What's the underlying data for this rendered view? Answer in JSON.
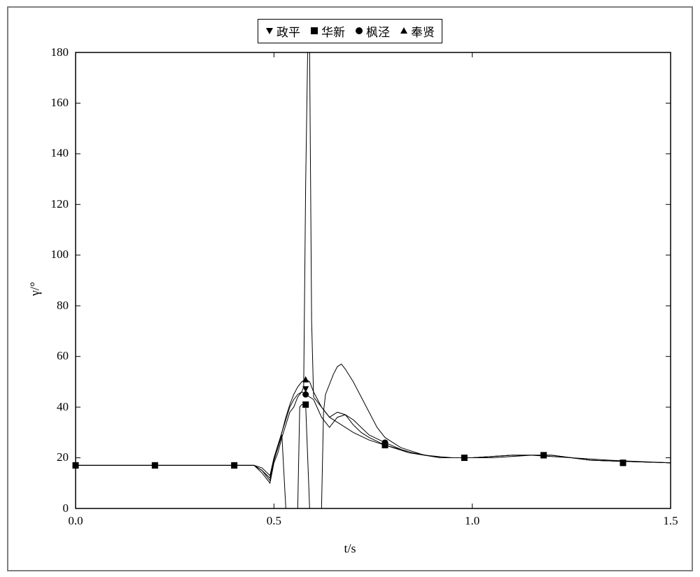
{
  "chart": {
    "type": "line",
    "xlabel": "t/s",
    "ylabel": "γ/°",
    "xlim": [
      0,
      1.5
    ],
    "ylim": [
      0,
      180
    ],
    "xtick_step": 0.5,
    "ytick_step": 20,
    "xticks": [
      0.0,
      0.5,
      1.0,
      1.5
    ],
    "yticks": [
      0,
      20,
      40,
      60,
      80,
      100,
      120,
      140,
      160,
      180
    ],
    "background_color": "#ffffff",
    "border_color": "#000000",
    "frame_color": "#808080",
    "line_color": "#000000",
    "line_width": 1,
    "label_fontsize": 18,
    "tick_fontsize": 17,
    "legend_fontsize": 17,
    "legend_position": "top-center",
    "series": [
      {
        "name": "政平",
        "marker": "triangle-down",
        "marker_color": "#000000",
        "marker_size": 9,
        "color": "#000000",
        "marker_x": [
          0.0,
          0.2,
          0.4,
          0.58,
          0.78,
          0.98,
          1.18,
          1.38
        ],
        "marker_y": [
          17,
          17,
          17,
          47,
          25,
          20,
          21,
          18
        ],
        "data": [
          [
            0.0,
            17
          ],
          [
            0.45,
            17
          ],
          [
            0.47,
            14
          ],
          [
            0.49,
            10
          ],
          [
            0.5,
            18
          ],
          [
            0.51,
            22
          ],
          [
            0.52,
            28
          ],
          [
            0.53,
            33
          ],
          [
            0.54,
            38
          ],
          [
            0.55,
            40
          ],
          [
            0.56,
            44
          ],
          [
            0.57,
            46
          ],
          [
            0.575,
            48
          ],
          [
            0.58,
            128
          ],
          [
            0.585,
            180
          ],
          [
            0.59,
            180
          ],
          [
            0.595,
            74
          ],
          [
            0.6,
            44
          ],
          [
            0.62,
            40
          ],
          [
            0.64,
            36
          ],
          [
            0.66,
            34
          ],
          [
            0.7,
            30
          ],
          [
            0.74,
            27
          ],
          [
            0.78,
            25
          ],
          [
            0.85,
            22
          ],
          [
            0.92,
            20
          ],
          [
            1.0,
            20
          ],
          [
            1.1,
            21
          ],
          [
            1.2,
            21
          ],
          [
            1.3,
            19
          ],
          [
            1.5,
            18
          ]
        ]
      },
      {
        "name": "华新",
        "marker": "square",
        "marker_color": "#000000",
        "marker_size": 9,
        "color": "#000000",
        "marker_x": [
          0.0,
          0.2,
          0.4,
          0.58,
          0.78,
          0.98,
          1.18,
          1.38
        ],
        "marker_y": [
          17,
          17,
          17,
          41,
          25,
          20,
          21,
          18
        ],
        "data": [
          [
            0.0,
            17
          ],
          [
            0.45,
            17
          ],
          [
            0.47,
            15
          ],
          [
            0.49,
            12
          ],
          [
            0.5,
            19
          ],
          [
            0.51,
            24
          ],
          [
            0.52,
            29
          ],
          [
            0.53,
            0
          ],
          [
            0.54,
            0
          ],
          [
            0.56,
            0
          ],
          [
            0.565,
            40
          ],
          [
            0.57,
            41
          ],
          [
            0.58,
            41
          ],
          [
            0.59,
            0
          ],
          [
            0.6,
            0
          ],
          [
            0.62,
            0
          ],
          [
            0.625,
            38
          ],
          [
            0.63,
            45
          ],
          [
            0.65,
            53
          ],
          [
            0.66,
            56
          ],
          [
            0.67,
            57
          ],
          [
            0.68,
            55
          ],
          [
            0.7,
            50
          ],
          [
            0.72,
            44
          ],
          [
            0.74,
            38
          ],
          [
            0.76,
            32
          ],
          [
            0.78,
            28
          ],
          [
            0.82,
            24
          ],
          [
            0.88,
            21
          ],
          [
            0.95,
            20
          ],
          [
            1.05,
            20
          ],
          [
            1.15,
            21
          ],
          [
            1.25,
            20
          ],
          [
            1.35,
            19
          ],
          [
            1.5,
            18
          ]
        ]
      },
      {
        "name": "枫泾",
        "marker": "circle",
        "marker_color": "#000000",
        "marker_size": 9,
        "color": "#000000",
        "marker_x": [
          0.0,
          0.2,
          0.4,
          0.58,
          0.78,
          0.98,
          1.18,
          1.38
        ],
        "marker_y": [
          17,
          17,
          17,
          45,
          26,
          20,
          21,
          18
        ],
        "data": [
          [
            0.0,
            17
          ],
          [
            0.45,
            17
          ],
          [
            0.47,
            16
          ],
          [
            0.49,
            13
          ],
          [
            0.5,
            20
          ],
          [
            0.51,
            25
          ],
          [
            0.52,
            30
          ],
          [
            0.53,
            35
          ],
          [
            0.54,
            40
          ],
          [
            0.55,
            43
          ],
          [
            0.56,
            45
          ],
          [
            0.57,
            46
          ],
          [
            0.58,
            45
          ],
          [
            0.6,
            43
          ],
          [
            0.62,
            36
          ],
          [
            0.64,
            32
          ],
          [
            0.66,
            36
          ],
          [
            0.68,
            37
          ],
          [
            0.7,
            35
          ],
          [
            0.72,
            32
          ],
          [
            0.74,
            29
          ],
          [
            0.78,
            26
          ],
          [
            0.84,
            22
          ],
          [
            0.92,
            20
          ],
          [
            1.0,
            20
          ],
          [
            1.1,
            21
          ],
          [
            1.2,
            21
          ],
          [
            1.3,
            19
          ],
          [
            1.5,
            18
          ]
        ]
      },
      {
        "name": "奉贤",
        "marker": "triangle-up",
        "marker_color": "#000000",
        "marker_size": 9,
        "color": "#000000",
        "marker_x": [
          0.0,
          0.2,
          0.4,
          0.58,
          0.78,
          0.98,
          1.18,
          1.38
        ],
        "marker_y": [
          17,
          17,
          17,
          51,
          25,
          20,
          21,
          18
        ],
        "data": [
          [
            0.0,
            17
          ],
          [
            0.45,
            17
          ],
          [
            0.47,
            15
          ],
          [
            0.49,
            11
          ],
          [
            0.5,
            19
          ],
          [
            0.51,
            24
          ],
          [
            0.52,
            30
          ],
          [
            0.53,
            36
          ],
          [
            0.54,
            41
          ],
          [
            0.55,
            45
          ],
          [
            0.56,
            48
          ],
          [
            0.57,
            50
          ],
          [
            0.58,
            51
          ],
          [
            0.59,
            50
          ],
          [
            0.6,
            46
          ],
          [
            0.62,
            40
          ],
          [
            0.64,
            36
          ],
          [
            0.66,
            38
          ],
          [
            0.68,
            37
          ],
          [
            0.7,
            33
          ],
          [
            0.72,
            30
          ],
          [
            0.74,
            28
          ],
          [
            0.78,
            25
          ],
          [
            0.84,
            22
          ],
          [
            0.92,
            20
          ],
          [
            1.0,
            20
          ],
          [
            1.1,
            21
          ],
          [
            1.2,
            21
          ],
          [
            1.3,
            19
          ],
          [
            1.5,
            18
          ]
        ]
      }
    ]
  }
}
